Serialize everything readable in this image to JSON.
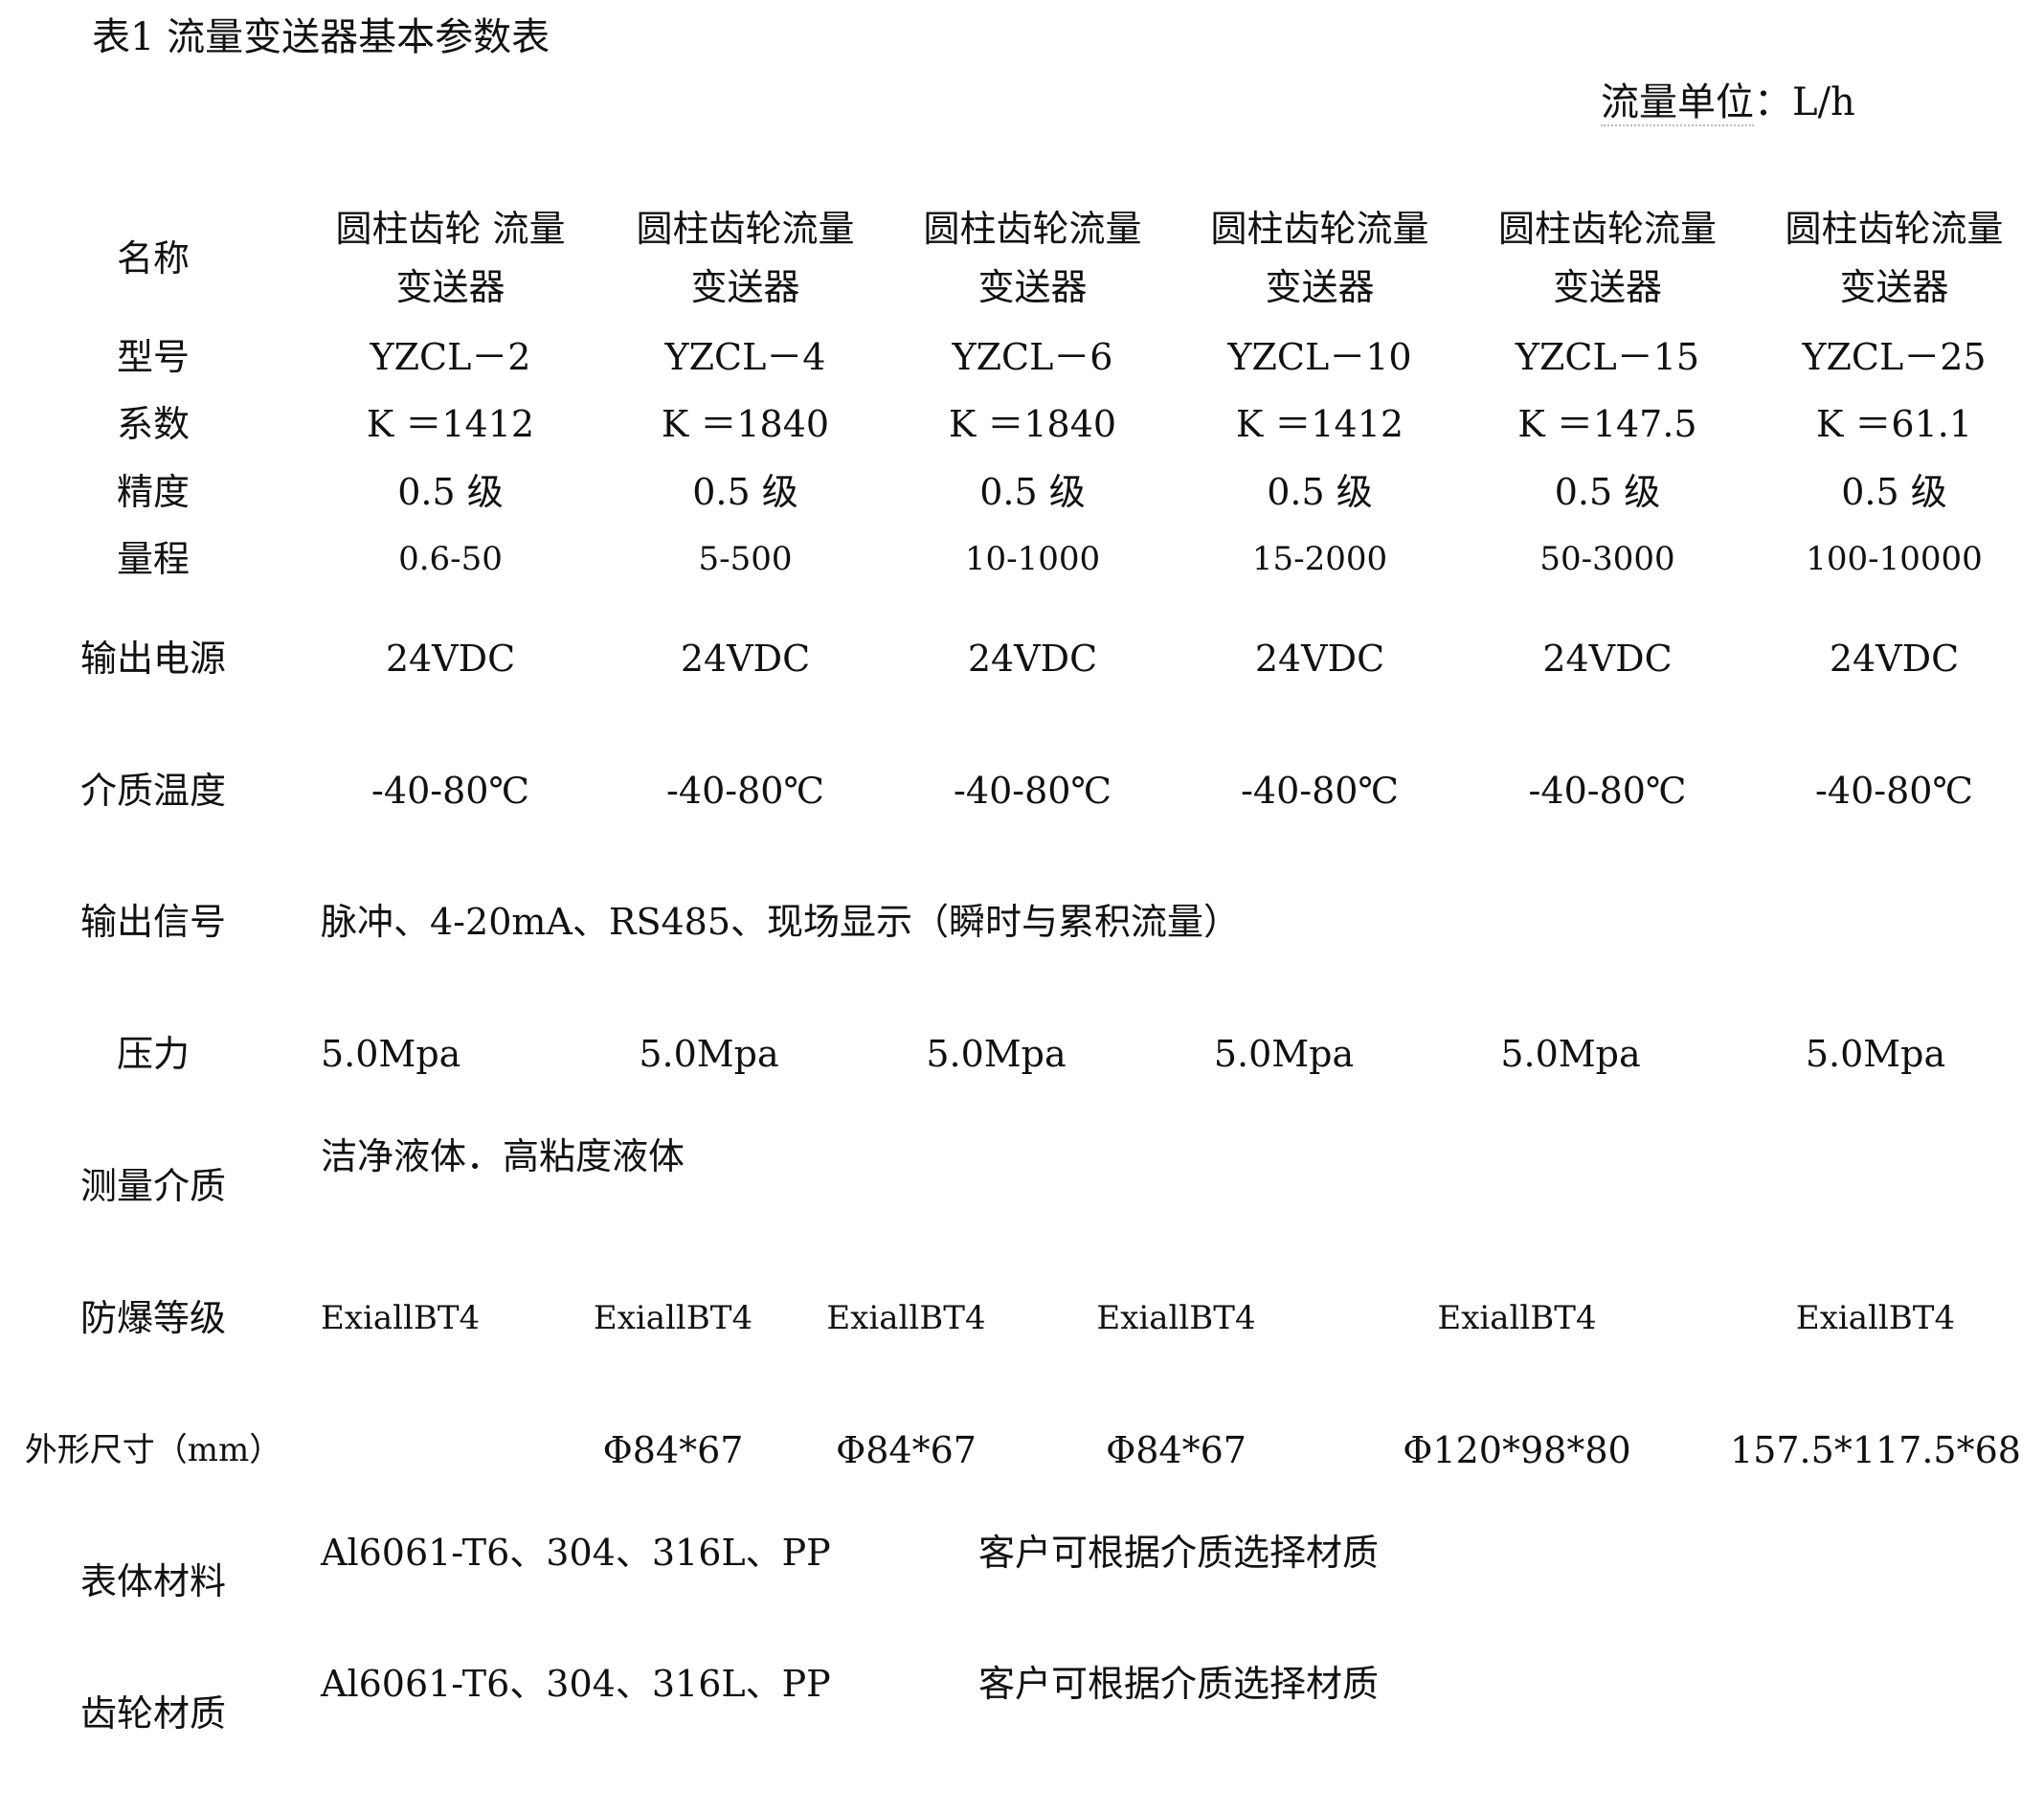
{
  "title": "表1 流量变送器基本参数表",
  "unit": {
    "label": "流量单位",
    "sep": "：",
    "value": "L/h"
  },
  "table": {
    "rows": [
      {
        "header": "名称",
        "cells": [
          "圆柱齿轮 流量变送器",
          "圆柱齿轮流量 变送器",
          "圆柱齿轮流量变送器",
          "圆柱齿轮流量变送器",
          "圆柱齿轮流量变送器",
          "圆柱齿轮流量变送器"
        ]
      },
      {
        "header": "型号",
        "cells": [
          "YZCL－2",
          "YZCL－4",
          "YZCL－6",
          "YZCL－10",
          "YZCL－15",
          "YZCL－25"
        ]
      },
      {
        "header": "系数",
        "cells": [
          "K ＝1412",
          "K ＝1840",
          "K ＝1840",
          "K ＝1412",
          "K ＝147.5",
          "K ＝61.1"
        ]
      },
      {
        "header": "精度",
        "cells": [
          "0.5 级",
          "0.5 级",
          "0.5 级",
          "0.5 级",
          "0.5 级",
          "0.5 级"
        ]
      },
      {
        "header": "量程",
        "cells": [
          "0.6-50",
          "5-500",
          "10-1000",
          "15-2000",
          "50-3000",
          "100-10000"
        ]
      },
      {
        "header": "输出电源",
        "cells": [
          "24VDC",
          "24VDC",
          "24VDC",
          "24VDC",
          "24VDC",
          "24VDC"
        ]
      },
      {
        "header": "介质温度",
        "cells": [
          "-40-80℃",
          "-40-80℃",
          "-40-80℃",
          "-40-80℃",
          "-40-80℃",
          "-40-80℃"
        ]
      },
      {
        "header": "输出信号",
        "cells": [
          "脉冲、4-20mA、RS485、现场显示（瞬时与累积流量）"
        ]
      },
      {
        "header": "压力",
        "cells": [
          "5.0Mpa",
          "5.0Mpa",
          "5.0Mpa",
          "5.0Mpa",
          "5.0Mpa",
          "5.0Mpa"
        ]
      },
      {
        "header": "测量介质",
        "cells": [
          "洁净液体．高粘度液体"
        ]
      },
      {
        "header": "防爆等级",
        "cells": [
          "ExiallBT4",
          "ExiallBT4",
          "ExiallBT4",
          "ExiallBT4",
          "ExiallBT4",
          "ExiallBT4"
        ]
      },
      {
        "header": "外形尺寸（mm）",
        "cells": [
          "",
          "Φ84*67",
          "Φ84*67",
          "Φ84*67",
          "Φ120*98*80",
          "157.5*117.5*68"
        ]
      },
      {
        "header": "表体材料",
        "cells": [
          "Al6061-T6、304、316L、PP",
          "客户可根据介质选择材质"
        ]
      },
      {
        "header": "齿轮材质",
        "cells": [
          "Al6061-T6、304、316L、PP",
          "客户可根据介质选择材质"
        ]
      }
    ]
  }
}
